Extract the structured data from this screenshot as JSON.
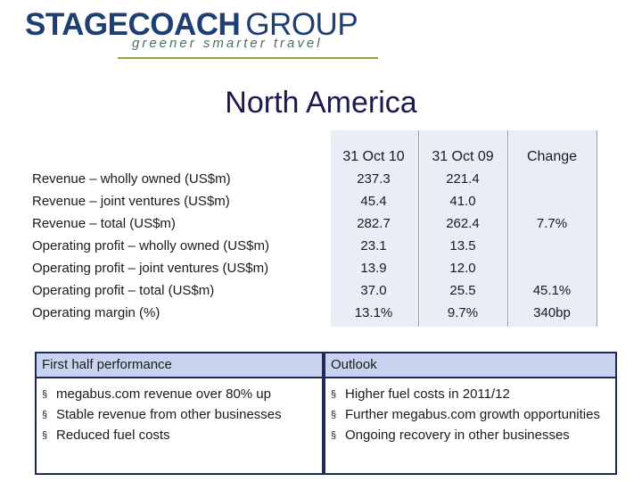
{
  "logo": {
    "name": "STAGECOACH",
    "group": "GROUP",
    "tagline": "greener  smarter  travel"
  },
  "title": "North America",
  "table": {
    "headers": [
      "31 Oct 10",
      "31 Oct 09",
      "Change"
    ],
    "rows": [
      {
        "label": "Revenue – wholly owned (US$m)",
        "v1": "237.3",
        "v2": "221.4",
        "change": ""
      },
      {
        "label": "Revenue – joint ventures (US$m)",
        "v1": "45.4",
        "v2": "41.0",
        "change": ""
      },
      {
        "label": "Revenue – total (US$m)",
        "v1": "282.7",
        "v2": "262.4",
        "change": "7.7%"
      },
      {
        "label": "Operating profit – wholly owned (US$m)",
        "v1": "23.1",
        "v2": "13.5",
        "change": ""
      },
      {
        "label": "Operating profit – joint ventures (US$m)",
        "v1": "13.9",
        "v2": "12.0",
        "change": ""
      },
      {
        "label": "Operating profit – total (US$m)",
        "v1": "37.0",
        "v2": "25.5",
        "change": "45.1%"
      },
      {
        "label": "Operating margin (%)",
        "v1": "13.1%",
        "v2": "9.7%",
        "change": "340bp"
      }
    ]
  },
  "first_half": {
    "heading": "First half performance",
    "items": [
      "megabus.com revenue over 80% up",
      "Stable revenue from other businesses",
      "Reduced fuel costs"
    ]
  },
  "outlook": {
    "heading": "Outlook",
    "items": [
      "Higher fuel costs in 2011/12",
      "Further megabus.com growth opportunities",
      "Ongoing recovery in other businesses"
    ]
  },
  "bullet_glyph": "§"
}
